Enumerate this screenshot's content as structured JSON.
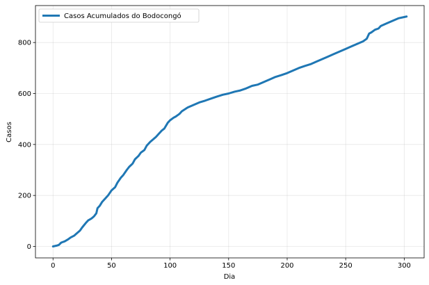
{
  "chart_data": {
    "type": "line",
    "title": "",
    "xlabel": "Dia",
    "ylabel": "Casos",
    "xlim": [
      -15,
      317
    ],
    "ylim": [
      -45,
      945
    ],
    "xticks": [
      0,
      50,
      100,
      150,
      200,
      250,
      300
    ],
    "yticks": [
      0,
      200,
      400,
      600,
      800
    ],
    "grid": true,
    "legend_position": "top-left",
    "series": [
      {
        "name": "Casos Acumulados do Bodocongó",
        "color": "#1f77b4",
        "x": [
          0,
          3,
          5,
          7,
          10,
          13,
          15,
          18,
          20,
          23,
          25,
          28,
          30,
          33,
          35,
          37,
          38,
          40,
          42,
          45,
          47,
          50,
          53,
          55,
          58,
          60,
          63,
          65,
          68,
          70,
          73,
          75,
          78,
          80,
          83,
          85,
          88,
          90,
          93,
          95,
          98,
          100,
          103,
          105,
          108,
          110,
          115,
          120,
          125,
          130,
          135,
          140,
          145,
          150,
          155,
          160,
          165,
          170,
          175,
          180,
          185,
          190,
          195,
          200,
          205,
          210,
          215,
          220,
          225,
          230,
          235,
          240,
          245,
          250,
          255,
          260,
          265,
          268,
          270,
          272,
          275,
          278,
          280,
          285,
          290,
          295,
          300,
          302
        ],
        "values": [
          0,
          3,
          6,
          15,
          20,
          28,
          35,
          42,
          50,
          62,
          75,
          92,
          102,
          110,
          118,
          130,
          150,
          160,
          175,
          190,
          200,
          220,
          232,
          250,
          270,
          280,
          300,
          312,
          325,
          342,
          355,
          368,
          378,
          395,
          410,
          418,
          430,
          440,
          455,
          462,
          485,
          495,
          505,
          510,
          520,
          530,
          545,
          555,
          565,
          572,
          580,
          588,
          595,
          600,
          607,
          612,
          620,
          630,
          635,
          645,
          655,
          665,
          672,
          680,
          690,
          700,
          708,
          715,
          725,
          735,
          745,
          755,
          765,
          775,
          785,
          795,
          805,
          815,
          835,
          840,
          850,
          855,
          865,
          875,
          885,
          895,
          900,
          902
        ]
      }
    ]
  }
}
